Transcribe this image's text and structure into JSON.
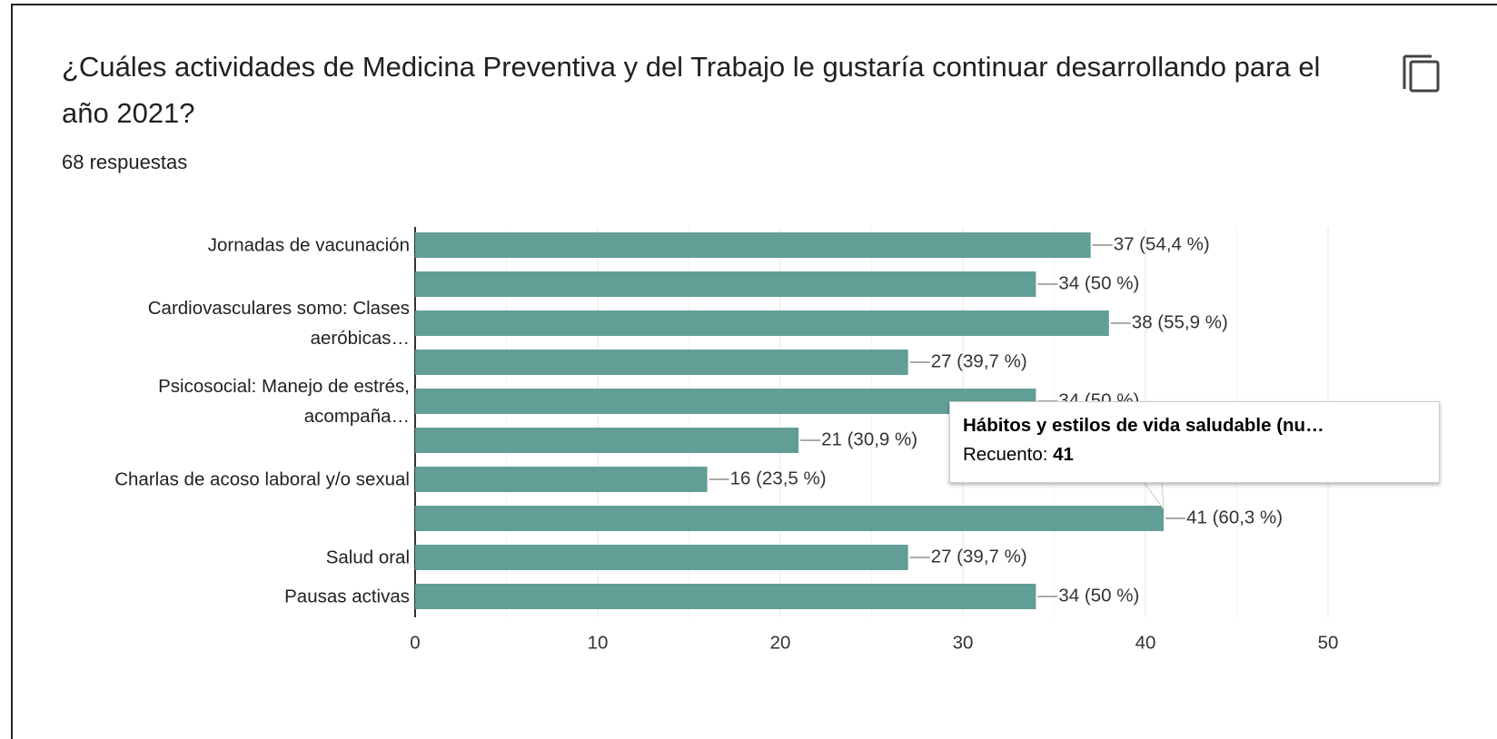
{
  "header": {
    "title": "¿Cuáles actividades de Medicina Preventiva y del Trabajo le gustaría continuar desarrollando para el año 2021?",
    "subtitle": "68 respuestas"
  },
  "chart_data": {
    "type": "hbar",
    "categories": [
      "Jornadas de vacunación",
      null,
      "Cardiovasculares somo: Clases aeróbicas…",
      null,
      "Psicosocial: Manejo de estrés, acompaña…",
      null,
      "Charlas de acoso laboral y/o sexual",
      null,
      "Salud oral",
      "Pausas activas"
    ],
    "values": [
      37,
      34,
      38,
      27,
      34,
      21,
      16,
      41,
      27,
      34
    ],
    "value_labels": [
      "37 (54,4 %)",
      "34 (50 %)",
      "38 (55,9 %)",
      "27 (39,7 %)",
      "34 (50 %)",
      "21 (30,9 %)",
      "16 (23,5 %)",
      "41 (60,3 %)",
      "27 (39,7 %)",
      "34 (50 %)"
    ],
    "color": "#629e96",
    "xlim": [
      0,
      50
    ],
    "xticks": [
      0,
      10,
      20,
      30,
      40,
      50
    ],
    "grid": true,
    "tooltip": {
      "title": "Hábitos y estilos de vida saludable (nu…",
      "label": "Recuento:"
    }
  }
}
